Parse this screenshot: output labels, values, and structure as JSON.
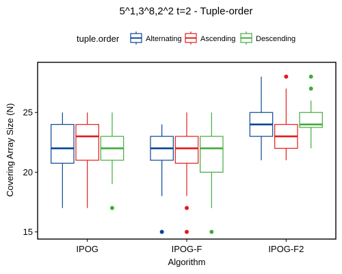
{
  "chart_data": {
    "type": "boxplot",
    "title": "5^1,3^8,2^2 t=2 - Tuple-order",
    "xlabel": "Algorithm",
    "ylabel": "Covering Array Size (N)",
    "ylim": [
      14.4,
      29.2
    ],
    "yticks": [
      15,
      20,
      25
    ],
    "grid": false,
    "legend": {
      "title": "tuple.order",
      "position": "top"
    },
    "categories": [
      "IPOG",
      "IPOG-F",
      "IPOG-F2"
    ],
    "series": [
      {
        "name": "Alternating",
        "color": "#084594",
        "boxes": [
          {
            "min": 17,
            "q1": 20.75,
            "median": 22,
            "q3": 24,
            "max": 25,
            "outliers": []
          },
          {
            "min": 18,
            "q1": 21,
            "median": 22,
            "q3": 23,
            "max": 24,
            "outliers": [
              15
            ]
          },
          {
            "min": 21,
            "q1": 23,
            "median": 24,
            "q3": 25,
            "max": 28,
            "outliers": []
          }
        ]
      },
      {
        "name": "Ascending",
        "color": "#e41a1c",
        "boxes": [
          {
            "min": 17,
            "q1": 21,
            "median": 23,
            "q3": 24,
            "max": 25,
            "outliers": []
          },
          {
            "min": 18,
            "q1": 20.75,
            "median": 22,
            "q3": 23,
            "max": 25,
            "outliers": [
              17,
              15
            ]
          },
          {
            "min": 21,
            "q1": 22,
            "median": 23,
            "q3": 24,
            "max": 27,
            "outliers": [
              28
            ]
          }
        ]
      },
      {
        "name": "Descending",
        "color": "#41ab3c",
        "boxes": [
          {
            "min": 19,
            "q1": 21,
            "median": 22,
            "q3": 23,
            "max": 25,
            "outliers": [
              17
            ]
          },
          {
            "min": 17,
            "q1": 20,
            "median": 22,
            "q3": 23,
            "max": 25,
            "outliers": [
              15
            ]
          },
          {
            "min": 22,
            "q1": 23.75,
            "median": 24,
            "q3": 25,
            "max": 26,
            "outliers": [
              27,
              28
            ]
          }
        ]
      }
    ]
  }
}
